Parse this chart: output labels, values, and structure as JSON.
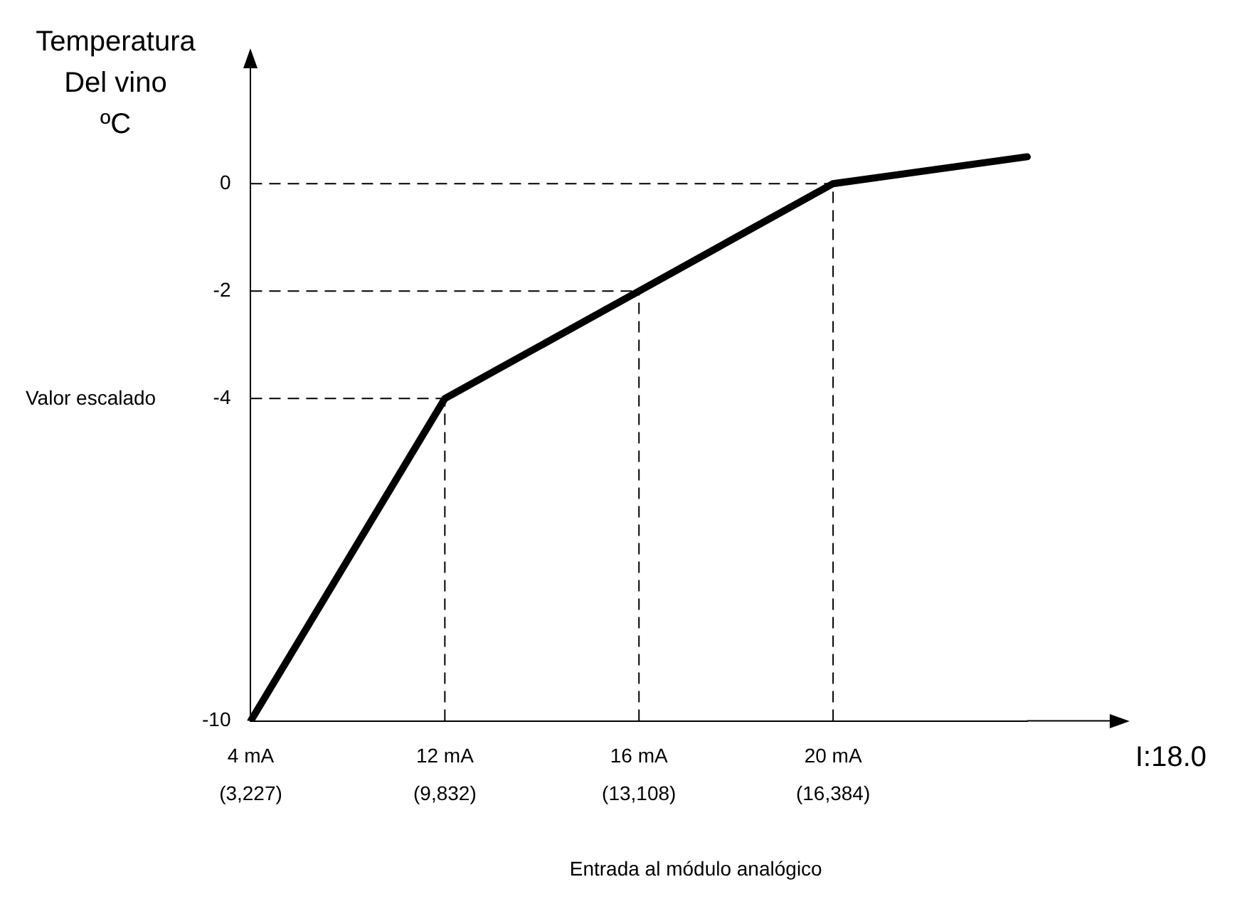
{
  "chart_data": {
    "type": "line",
    "xlabel": "I:18.0",
    "ylabel": "Temperatura\nDel vino\nºC",
    "annotations": [
      "Valor escalado",
      "Entrada al módulo analógico"
    ],
    "categories": [
      "4 mA\n(3,227)",
      "12 mA\n(9,832)",
      "16 mA\n(13,108)",
      "20 mA\n(16,384)",
      null
    ],
    "series": [
      {
        "color": "#000000",
        "values": [
          -10,
          -4,
          -2,
          0,
          0.5
        ]
      }
    ],
    "ylim": [
      -10,
      2.2
    ],
    "yticks": [
      -10,
      -4,
      -2,
      0
    ],
    "ref_lines": [
      {
        "axis": "y",
        "value": 0,
        "line_style": "dashed"
      },
      {
        "axis": "y",
        "value": -2,
        "line_style": "dashed"
      },
      {
        "axis": "y",
        "value": -4,
        "line_style": "dashed"
      },
      {
        "axis": "x",
        "value": "12 mA\n(9,832)",
        "line_style": "dashed"
      },
      {
        "axis": "x",
        "value": "16 mA\n(13,108)",
        "line_style": "dashed"
      },
      {
        "axis": "x",
        "value": "20 mA\n(16,384)",
        "line_style": "dashed"
      }
    ],
    "grid": false,
    "legend": false,
    "marker": "none",
    "line_style": "solid"
  }
}
